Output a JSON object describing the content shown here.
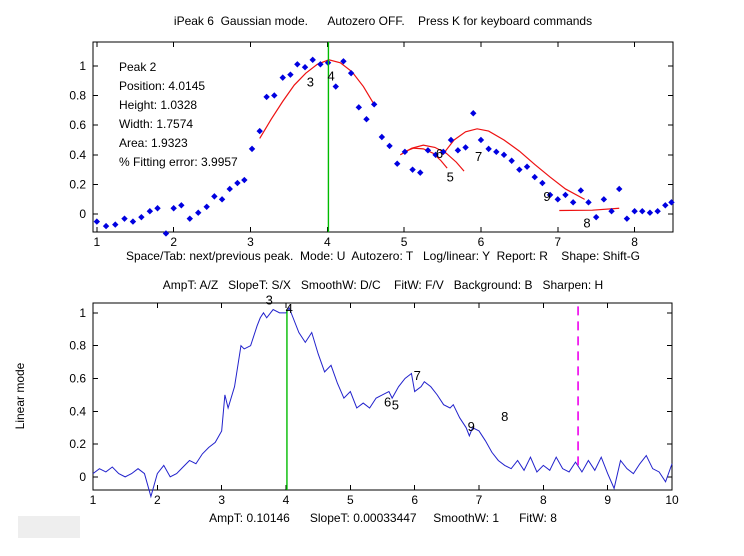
{
  "figure": {
    "background": "#ffffff"
  },
  "chart_data": [
    {
      "type": "scatter",
      "title": "iPeak 6  Gaussian mode.      Autozero OFF.    Press K for keyboard commands",
      "xlabel": "Space/Tab: next/previous peak.  Mode: U  Autozero: T   Log/linear: Y  Report: R    Shape: Shift-G",
      "xlim": [
        0.95,
        8.5
      ],
      "ylim": [
        -0.12,
        1.16
      ],
      "xticks": [
        1,
        2,
        3,
        4,
        5,
        6,
        7,
        8
      ],
      "yticks": [
        0,
        0.2,
        0.4,
        0.6,
        0.8,
        1
      ],
      "grid": false,
      "marker_color": "#0000e0",
      "fit_color": "#ee1111",
      "cursor": {
        "x": 4.0145,
        "color": "#00bb00",
        "y0": -0.12,
        "y1": 1.16
      },
      "info_lines": [
        "Peak 2",
        "Position: 4.0145",
        "Height: 1.0328",
        "Width: 1.7574",
        "Area: 1.9323",
        "% Fitting error: 3.9957"
      ],
      "peak_labels": [
        {
          "t": "3",
          "x": 3.78,
          "y": 0.86
        },
        {
          "t": "4",
          "x": 4.05,
          "y": 0.9
        },
        {
          "t": "6",
          "x": 5.46,
          "y": 0.38
        },
        {
          "t": "5",
          "x": 5.6,
          "y": 0.22
        },
        {
          "t": "7",
          "x": 5.97,
          "y": 0.36
        },
        {
          "t": "9",
          "x": 6.86,
          "y": 0.09
        },
        {
          "t": "8",
          "x": 7.38,
          "y": -0.09
        }
      ],
      "points": [
        [
          1.0,
          -0.05
        ],
        [
          1.12,
          -0.08
        ],
        [
          1.24,
          -0.07
        ],
        [
          1.36,
          -0.03
        ],
        [
          1.47,
          -0.05
        ],
        [
          1.58,
          -0.02
        ],
        [
          1.69,
          0.02
        ],
        [
          1.79,
          0.04
        ],
        [
          1.9,
          -0.13
        ],
        [
          2.0,
          0.04
        ],
        [
          2.1,
          0.06
        ],
        [
          2.21,
          -0.03
        ],
        [
          2.32,
          0.01
        ],
        [
          2.43,
          0.05
        ],
        [
          2.53,
          0.12
        ],
        [
          2.63,
          0.1
        ],
        [
          2.73,
          0.17
        ],
        [
          2.83,
          0.21
        ],
        [
          2.92,
          0.23
        ],
        [
          3.02,
          0.44
        ],
        [
          3.12,
          0.56
        ],
        [
          3.21,
          0.79
        ],
        [
          3.31,
          0.8
        ],
        [
          3.42,
          0.92
        ],
        [
          3.52,
          0.94
        ],
        [
          3.61,
          1.01
        ],
        [
          3.71,
          0.99
        ],
        [
          3.81,
          1.04
        ],
        [
          3.91,
          1.01
        ],
        [
          4.01,
          1.02
        ],
        [
          4.11,
          0.86
        ],
        [
          4.21,
          1.03
        ],
        [
          4.31,
          0.95
        ],
        [
          4.41,
          0.72
        ],
        [
          4.51,
          0.64
        ],
        [
          4.61,
          0.74
        ],
        [
          4.71,
          0.52
        ],
        [
          4.81,
          0.46
        ],
        [
          4.91,
          0.34
        ],
        [
          5.01,
          0.42
        ],
        [
          5.11,
          0.3
        ],
        [
          5.21,
          0.28
        ],
        [
          5.31,
          0.43
        ],
        [
          5.41,
          0.4
        ],
        [
          5.51,
          0.42
        ],
        [
          5.61,
          0.5
        ],
        [
          5.7,
          0.43
        ],
        [
          5.8,
          0.45
        ],
        [
          5.9,
          0.68
        ],
        [
          6.0,
          0.5
        ],
        [
          6.1,
          0.44
        ],
        [
          6.2,
          0.42
        ],
        [
          6.3,
          0.4
        ],
        [
          6.4,
          0.36
        ],
        [
          6.5,
          0.3
        ],
        [
          6.6,
          0.32
        ],
        [
          6.7,
          0.25
        ],
        [
          6.8,
          0.21
        ],
        [
          6.9,
          0.13
        ],
        [
          7.0,
          0.1
        ],
        [
          7.1,
          0.13
        ],
        [
          7.2,
          0.08
        ],
        [
          7.3,
          0.16
        ],
        [
          7.4,
          0.08
        ],
        [
          7.5,
          -0.02
        ],
        [
          7.6,
          0.1
        ],
        [
          7.7,
          0.02
        ],
        [
          7.8,
          0.17
        ],
        [
          7.9,
          -0.03
        ],
        [
          8.0,
          0.02
        ],
        [
          8.1,
          0.02
        ],
        [
          8.2,
          0.01
        ],
        [
          8.3,
          0.02
        ],
        [
          8.4,
          0.06
        ],
        [
          8.48,
          0.08
        ]
      ],
      "fit_curves": [
        [
          [
            3.12,
            0.51
          ],
          [
            3.27,
            0.64
          ],
          [
            3.42,
            0.76
          ],
          [
            3.57,
            0.87
          ],
          [
            3.72,
            0.95
          ],
          [
            3.87,
            1.01
          ],
          [
            4.02,
            1.04
          ],
          [
            4.17,
            1.02
          ],
          [
            4.32,
            0.96
          ],
          [
            4.47,
            0.86
          ],
          [
            4.62,
            0.73
          ]
        ],
        [
          [
            4.95,
            0.4
          ],
          [
            5.1,
            0.445
          ],
          [
            5.25,
            0.465
          ],
          [
            5.4,
            0.45
          ],
          [
            5.55,
            0.41
          ],
          [
            5.68,
            0.35
          ],
          [
            5.78,
            0.29
          ]
        ],
        [
          [
            5.0,
            0.42
          ],
          [
            5.12,
            0.445
          ],
          [
            5.25,
            0.44
          ],
          [
            5.38,
            0.41
          ],
          [
            5.48,
            0.36
          ],
          [
            5.56,
            0.31
          ]
        ],
        [
          [
            5.5,
            0.4
          ],
          [
            5.65,
            0.5
          ],
          [
            5.8,
            0.555
          ],
          [
            5.95,
            0.575
          ],
          [
            6.1,
            0.56
          ],
          [
            6.3,
            0.5
          ],
          [
            6.5,
            0.425
          ],
          [
            6.7,
            0.335
          ],
          [
            6.9,
            0.25
          ],
          [
            7.1,
            0.17
          ],
          [
            7.35,
            0.1
          ]
        ],
        [
          [
            7.02,
            0.025
          ],
          [
            7.45,
            0.027
          ],
          [
            7.8,
            0.04
          ]
        ]
      ]
    },
    {
      "type": "line",
      "title": "AmpT: A/Z   SlopeT: S/X   SmoothW: D/C    FitW: F/V   Background: B   Sharpen: H",
      "xlabel": "AmpT: 0.10146      SlopeT: 0.00033447     SmoothW: 1      FitW: 8",
      "ylabel": "Linear mode",
      "xlim": [
        1,
        10
      ],
      "ylim": [
        -0.08,
        1.06
      ],
      "xticks": [
        1,
        2,
        3,
        4,
        5,
        6,
        7,
        8,
        9,
        10
      ],
      "yticks": [
        0,
        0.2,
        0.4,
        0.6,
        0.8,
        1
      ],
      "grid": false,
      "line_color": "#2222cc",
      "cursor": {
        "x": 4.0145,
        "color": "#00bb00",
        "y0": -0.08,
        "y1": 1.02
      },
      "marker_line": {
        "x": 8.54,
        "color": "#ee00ee",
        "y0": 0.07,
        "y1": 1.04,
        "dashed": true
      },
      "peak_labels": [
        {
          "t": "3",
          "x": 3.74,
          "y": 1.05
        },
        {
          "t": "4",
          "x": 4.05,
          "y": 1.0
        },
        {
          "t": "6",
          "x": 5.58,
          "y": 0.43
        },
        {
          "t": "5",
          "x": 5.7,
          "y": 0.41
        },
        {
          "t": "7",
          "x": 6.04,
          "y": 0.59
        },
        {
          "t": "9",
          "x": 6.88,
          "y": 0.28
        },
        {
          "t": "8",
          "x": 7.4,
          "y": 0.34
        }
      ],
      "points": [
        [
          1.0,
          0.02
        ],
        [
          1.1,
          0.05
        ],
        [
          1.2,
          0.03
        ],
        [
          1.3,
          0.06
        ],
        [
          1.4,
          0.02
        ],
        [
          1.5,
          0.0
        ],
        [
          1.6,
          0.02
        ],
        [
          1.7,
          0.05
        ],
        [
          1.8,
          0.02
        ],
        [
          1.9,
          -0.12
        ],
        [
          2.0,
          0.02
        ],
        [
          2.1,
          0.07
        ],
        [
          2.2,
          0.0
        ],
        [
          2.3,
          0.02
        ],
        [
          2.4,
          0.06
        ],
        [
          2.5,
          0.1
        ],
        [
          2.6,
          0.08
        ],
        [
          2.7,
          0.14
        ],
        [
          2.8,
          0.18
        ],
        [
          2.9,
          0.21
        ],
        [
          3.0,
          0.28
        ],
        [
          3.05,
          0.5
        ],
        [
          3.1,
          0.42
        ],
        [
          3.2,
          0.55
        ],
        [
          3.3,
          0.8
        ],
        [
          3.35,
          0.78
        ],
        [
          3.45,
          0.8
        ],
        [
          3.55,
          0.92
        ],
        [
          3.6,
          0.97
        ],
        [
          3.65,
          1.0
        ],
        [
          3.7,
          0.97
        ],
        [
          3.8,
          1.02
        ],
        [
          3.9,
          1.0
        ],
        [
          4.0,
          1.0
        ],
        [
          4.05,
          1.03
        ],
        [
          4.1,
          0.98
        ],
        [
          4.2,
          0.88
        ],
        [
          4.3,
          0.82
        ],
        [
          4.4,
          0.88
        ],
        [
          4.5,
          0.75
        ],
        [
          4.6,
          0.64
        ],
        [
          4.7,
          0.68
        ],
        [
          4.8,
          0.57
        ],
        [
          4.9,
          0.48
        ],
        [
          5.0,
          0.52
        ],
        [
          5.1,
          0.42
        ],
        [
          5.2,
          0.45
        ],
        [
          5.3,
          0.42
        ],
        [
          5.4,
          0.48
        ],
        [
          5.5,
          0.5
        ],
        [
          5.6,
          0.52
        ],
        [
          5.65,
          0.48
        ],
        [
          5.75,
          0.55
        ],
        [
          5.85,
          0.6
        ],
        [
          5.95,
          0.63
        ],
        [
          6.0,
          0.52
        ],
        [
          6.1,
          0.55
        ],
        [
          6.15,
          0.58
        ],
        [
          6.25,
          0.55
        ],
        [
          6.35,
          0.5
        ],
        [
          6.45,
          0.44
        ],
        [
          6.55,
          0.42
        ],
        [
          6.6,
          0.44
        ],
        [
          6.7,
          0.36
        ],
        [
          6.8,
          0.3
        ],
        [
          6.85,
          0.25
        ],
        [
          6.9,
          0.3
        ],
        [
          7.0,
          0.28
        ],
        [
          7.1,
          0.22
        ],
        [
          7.2,
          0.15
        ],
        [
          7.3,
          0.1
        ],
        [
          7.4,
          0.07
        ],
        [
          7.5,
          0.05
        ],
        [
          7.6,
          0.1
        ],
        [
          7.7,
          0.04
        ],
        [
          7.8,
          0.12
        ],
        [
          7.9,
          0.03
        ],
        [
          8.0,
          0.07
        ],
        [
          8.1,
          0.04
        ],
        [
          8.2,
          0.12
        ],
        [
          8.3,
          0.05
        ],
        [
          8.4,
          0.03
        ],
        [
          8.5,
          0.09
        ],
        [
          8.6,
          0.03
        ],
        [
          8.7,
          0.1
        ],
        [
          8.8,
          0.04
        ],
        [
          8.9,
          0.12
        ],
        [
          9.0,
          0.02
        ],
        [
          9.1,
          -0.07
        ],
        [
          9.2,
          0.1
        ],
        [
          9.3,
          0.05
        ],
        [
          9.4,
          0.02
        ],
        [
          9.5,
          0.08
        ],
        [
          9.6,
          0.13
        ],
        [
          9.7,
          0.05
        ],
        [
          9.8,
          0.03
        ],
        [
          9.9,
          -0.03
        ],
        [
          10.0,
          0.08
        ]
      ]
    }
  ]
}
